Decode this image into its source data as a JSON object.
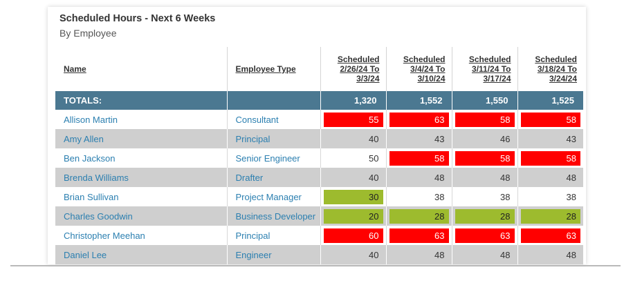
{
  "card": {
    "title": "Scheduled Hours - Next 6 Weeks",
    "subtitle": "By Employee"
  },
  "columns": {
    "name": "Name",
    "type": "Employee Type",
    "weeks": [
      {
        "line1": "Scheduled",
        "line2": "2/26/24 To",
        "line3": "3/3/24"
      },
      {
        "line1": "Scheduled",
        "line2": "3/4/24 To",
        "line3": "3/10/24"
      },
      {
        "line1": "Scheduled",
        "line2": "3/11/24 To",
        "line3": "3/17/24"
      },
      {
        "line1": "Scheduled",
        "line2": "3/18/24 To",
        "line3": "3/24/24"
      }
    ]
  },
  "totals": {
    "label": "TOTALS:",
    "values": [
      "1,320",
      "1,552",
      "1,550",
      "1,525"
    ]
  },
  "colors": {
    "over": "#ff0000",
    "under": "#9dbb2e",
    "totals_bg": "#4b7891",
    "link": "#2b7fb0"
  },
  "rows": [
    {
      "name": "Allison Martin",
      "type": "Consultant",
      "hours": [
        "55",
        "63",
        "58",
        "58"
      ],
      "status": [
        "red",
        "red",
        "red",
        "red"
      ]
    },
    {
      "name": "Amy Allen",
      "type": "Principal",
      "hours": [
        "40",
        "43",
        "46",
        "43"
      ],
      "status": [
        "none",
        "none",
        "none",
        "none"
      ]
    },
    {
      "name": "Ben Jackson",
      "type": "Senior Engineer",
      "hours": [
        "50",
        "58",
        "58",
        "58"
      ],
      "status": [
        "none",
        "red",
        "red",
        "red"
      ]
    },
    {
      "name": "Brenda Williams",
      "type": "Drafter",
      "hours": [
        "40",
        "48",
        "48",
        "48"
      ],
      "status": [
        "none",
        "none",
        "none",
        "none"
      ]
    },
    {
      "name": "Brian Sullivan",
      "type": "Project Manager",
      "hours": [
        "30",
        "38",
        "38",
        "38"
      ],
      "status": [
        "green",
        "none",
        "none",
        "none"
      ]
    },
    {
      "name": "Charles Goodwin",
      "type": "Business Developer",
      "hours": [
        "20",
        "28",
        "28",
        "28"
      ],
      "status": [
        "green",
        "green",
        "green",
        "green"
      ]
    },
    {
      "name": "Christopher Meehan",
      "type": "Principal",
      "hours": [
        "60",
        "63",
        "63",
        "63"
      ],
      "status": [
        "red",
        "red",
        "red",
        "red"
      ]
    },
    {
      "name": "Daniel Lee",
      "type": "Engineer",
      "hours": [
        "40",
        "48",
        "48",
        "48"
      ],
      "status": [
        "none",
        "none",
        "none",
        "none"
      ]
    }
  ]
}
